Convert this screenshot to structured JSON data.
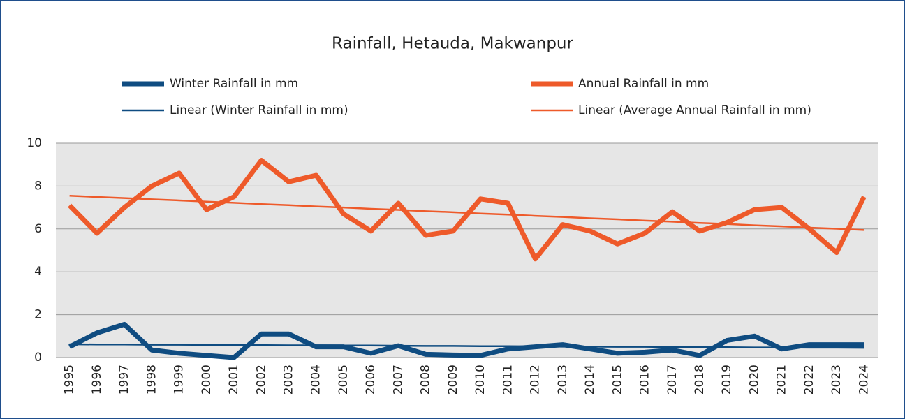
{
  "chart_data": {
    "type": "line",
    "title": "Rainfall, Hetauda, Makwanpur",
    "categories": [
      "1995",
      "1996",
      "1997",
      "1998",
      "1999",
      "2000",
      "2001",
      "2002",
      "2003",
      "2004",
      "2005",
      "2006",
      "2007",
      "2008",
      "2009",
      "2010",
      "2011",
      "2012",
      "2013",
      "2014",
      "2015",
      "2016",
      "2017",
      "2018",
      "2019",
      "2020",
      "2021",
      "2022",
      "2023",
      "2024"
    ],
    "series": [
      {
        "name": "Winter Rainfall in mm",
        "color": "#0f4c81",
        "line_width": 7,
        "values": [
          0.5,
          1.15,
          1.55,
          0.35,
          0.2,
          0.1,
          0.0,
          1.1,
          1.1,
          0.5,
          0.5,
          0.2,
          0.55,
          0.15,
          0.12,
          0.1,
          0.4,
          0.5,
          0.6,
          0.4,
          0.2,
          0.25,
          0.35,
          0.1,
          0.8,
          1.0,
          0.4,
          0.6,
          0.6,
          0.6
        ]
      },
      {
        "name": "Annual Rainfall in mm",
        "color": "#ee5a2a",
        "line_width": 7,
        "values": [
          7.1,
          5.8,
          7.0,
          8.0,
          8.6,
          6.9,
          7.5,
          9.2,
          8.2,
          8.5,
          6.7,
          5.9,
          7.2,
          5.7,
          5.9,
          7.4,
          7.2,
          4.6,
          6.2,
          5.9,
          5.3,
          5.8,
          6.8,
          5.9,
          6.3,
          6.9,
          7.0,
          6.0,
          4.9,
          7.5
        ]
      },
      {
        "name": "Linear (Winter Rainfall in mm)",
        "color": "#0f4c81",
        "line_width": 2.5,
        "values": [
          0.62,
          0.61,
          0.61,
          0.6,
          0.6,
          0.59,
          0.58,
          0.58,
          0.57,
          0.57,
          0.56,
          0.56,
          0.55,
          0.54,
          0.54,
          0.53,
          0.53,
          0.52,
          0.51,
          0.51,
          0.5,
          0.5,
          0.49,
          0.49,
          0.48,
          0.47,
          0.47,
          0.46,
          0.46,
          0.45
        ]
      },
      {
        "name": "Linear (Average Annual Rainfall in mm)",
        "color": "#ee5a2a",
        "line_width": 2.5,
        "values": [
          7.55,
          7.49,
          7.44,
          7.38,
          7.33,
          7.27,
          7.22,
          7.16,
          7.11,
          7.05,
          7.0,
          6.94,
          6.89,
          6.83,
          6.78,
          6.72,
          6.67,
          6.61,
          6.56,
          6.5,
          6.45,
          6.39,
          6.34,
          6.28,
          6.23,
          6.17,
          6.12,
          6.06,
          6.01,
          5.95
        ]
      }
    ],
    "ylim": [
      0,
      10
    ],
    "yticks": [
      0,
      2,
      4,
      6,
      8,
      10
    ],
    "grid": true
  }
}
